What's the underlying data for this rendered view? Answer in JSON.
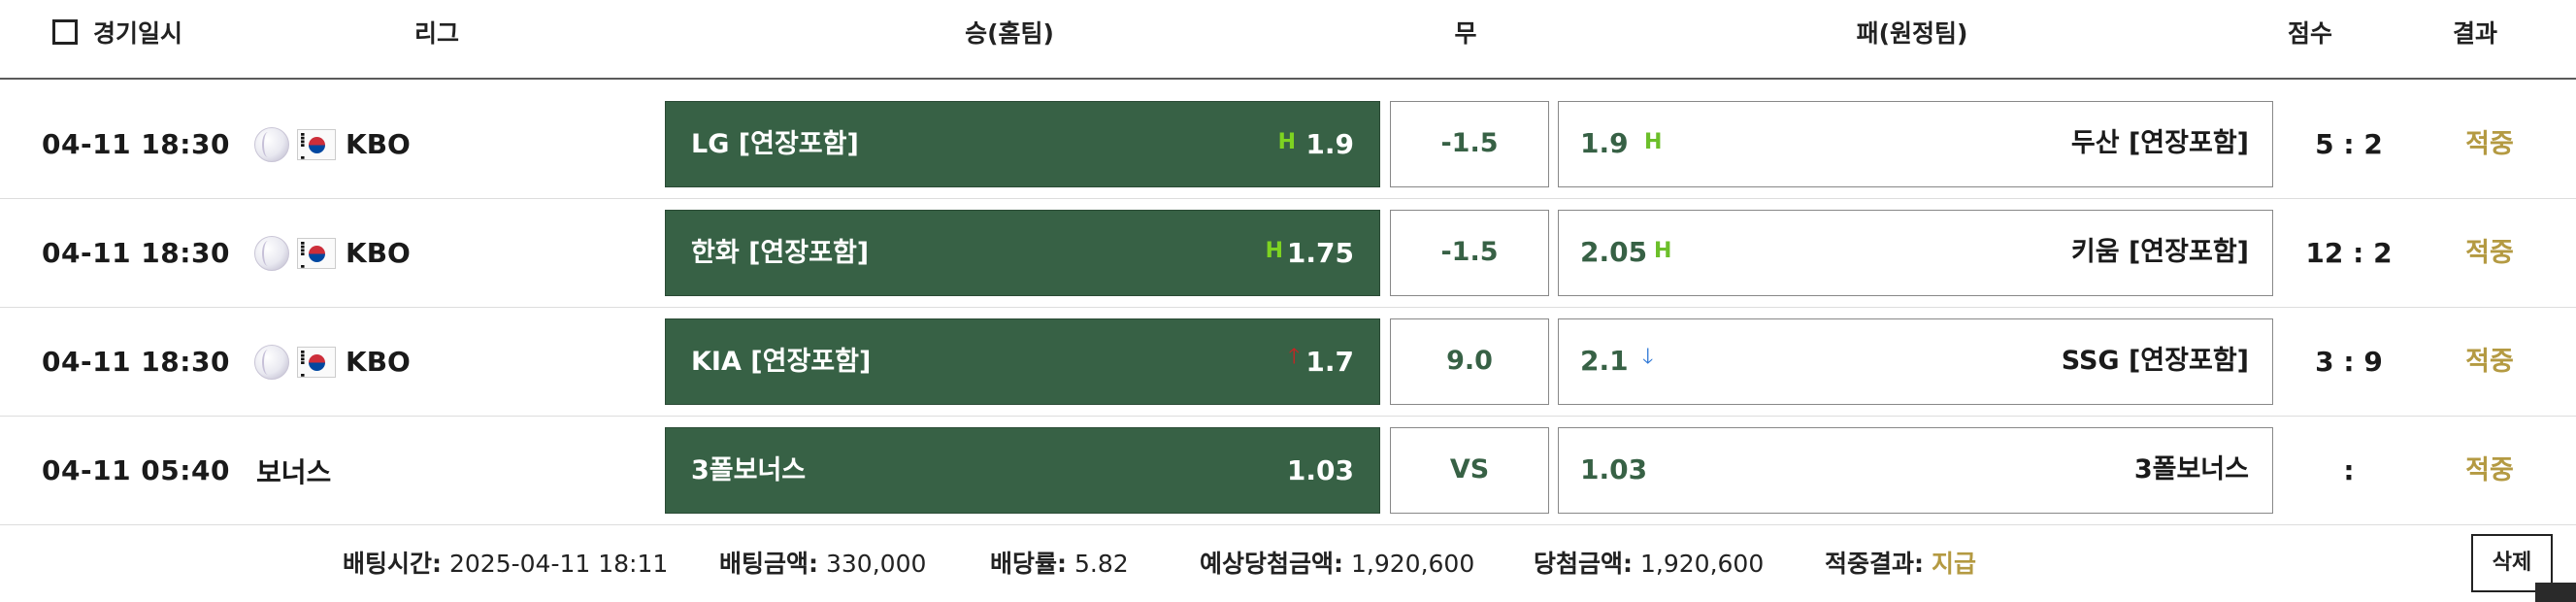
{
  "header": {
    "date": "경기일시",
    "league": "리그",
    "home": "승(홈팀)",
    "draw": "무",
    "away": "패(원정팀)",
    "score": "점수",
    "result": "결과"
  },
  "rows": [
    {
      "date": "04-11 18:30",
      "league": "KBO",
      "home_team": "LG [연장포함]",
      "home_odds": "1.9",
      "home_marker": "H",
      "draw": "-1.5",
      "away_odds": "1.9",
      "away_marker": "H",
      "away_team": "두산 [연장포함]",
      "score": "5 : 2",
      "result": "적중"
    },
    {
      "date": "04-11 18:30",
      "league": "KBO",
      "home_team": "한화 [연장포함]",
      "home_odds": "1.75",
      "home_marker": "H",
      "draw": "-1.5",
      "away_odds": "2.05",
      "away_marker": "H",
      "away_team": "키움 [연장포함]",
      "score": "12 : 2",
      "result": "적중"
    },
    {
      "date": "04-11 18:30",
      "league": "KBO",
      "home_team": "KIA [연장포함]",
      "home_odds": "1.7",
      "home_marker": "up-arrow",
      "draw": "9.0",
      "away_odds": "2.1",
      "away_marker": "down-arrow",
      "away_team": "SSG [연장포함]",
      "score": "3 : 9",
      "result": "적중"
    },
    {
      "date": "04-11 05:40",
      "league": "보너스",
      "home_team": "3폴보너스",
      "home_odds": "1.03",
      "draw": "VS",
      "away_odds": "1.03",
      "away_team": "3폴보너스",
      "score": ":",
      "result": "적중"
    }
  ],
  "summary": {
    "bet_time_label": "배팅시간:",
    "bet_time": "2025-04-11 18:11",
    "bet_amount_label": "배팅금액:",
    "bet_amount": "330,000",
    "odds_label": "배당률:",
    "odds": "5.82",
    "expected_label": "예상당첨금액:",
    "expected": "1,920,600",
    "win_label": "당첨금액:",
    "win": "1,920,600",
    "hit_label": "적중결과:",
    "hit": "지급"
  },
  "delete_label": "삭제",
  "colors": {
    "home_bg": "#376145",
    "accent_gold": "#b49a42",
    "h_marker": "#7ed321",
    "up_arrow": "#cc2222",
    "down_arrow": "#2f78d6"
  },
  "icons": [
    "checkbox-icon",
    "baseball-icon",
    "korea-flag-icon",
    "h-marker-icon",
    "up-arrow-icon",
    "down-arrow-icon"
  ]
}
